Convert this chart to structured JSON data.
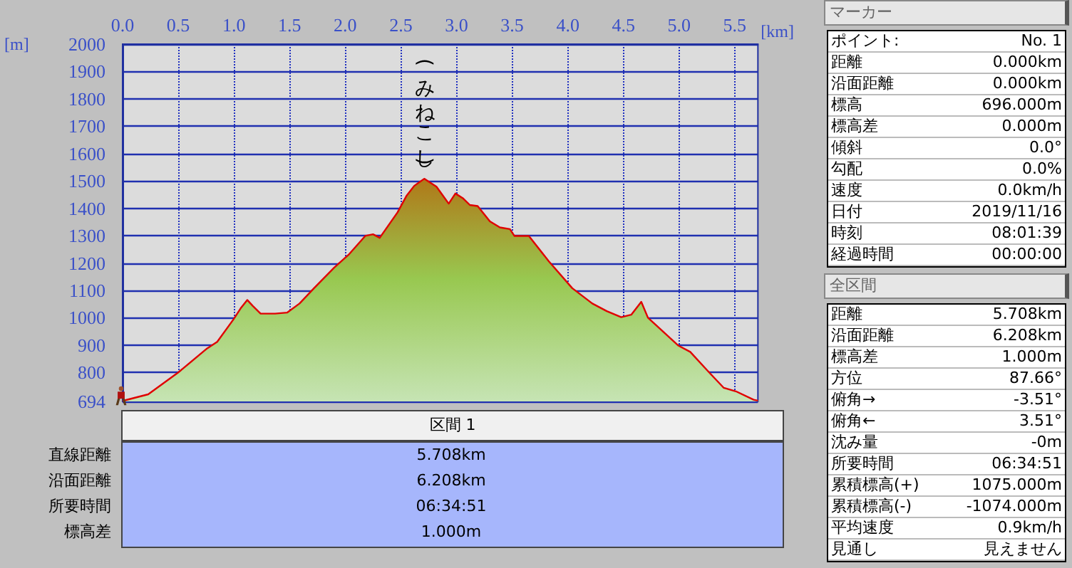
{
  "chart_data": [
    {
      "type": "area",
      "xlabel": "[km]",
      "ylabel": "[m]",
      "grid": true,
      "xlim": [
        0,
        5.708
      ],
      "ylim": [
        694,
        2000
      ],
      "xticks": [
        {
          "value": 0,
          "label": "0.0"
        },
        {
          "value": 0.5,
          "label": "0.5"
        },
        {
          "value": 1,
          "label": "1.0"
        },
        {
          "value": 1.5,
          "label": "1.5"
        },
        {
          "value": 2,
          "label": "2.0"
        },
        {
          "value": 2.5,
          "label": "2.5"
        },
        {
          "value": 3,
          "label": "3.0"
        },
        {
          "value": 3.5,
          "label": "3.5"
        },
        {
          "value": 4,
          "label": "4.0"
        },
        {
          "value": 4.5,
          "label": "4.5"
        },
        {
          "value": 5,
          "label": "5.0"
        },
        {
          "value": 5.5,
          "label": "5.5"
        }
      ],
      "yticks": [
        694,
        800,
        900,
        1000,
        1100,
        1200,
        1300,
        1400,
        1500,
        1600,
        1700,
        1800,
        1900,
        2000
      ],
      "x": [
        0,
        0.23,
        0.5,
        0.76,
        0.85,
        1.0,
        1.06,
        1.12,
        1.17,
        1.24,
        1.37,
        1.48,
        1.59,
        1.72,
        1.9,
        2.03,
        2.18,
        2.25,
        2.31,
        2.47,
        2.55,
        2.62,
        2.71,
        2.82,
        2.93,
        2.99,
        3.06,
        3.12,
        3.19,
        3.3,
        3.39,
        3.48,
        3.52,
        3.65,
        3.83,
        4.04,
        4.22,
        4.35,
        4.48,
        4.57,
        4.66,
        4.72,
        4.83,
        4.99,
        5.1,
        5.27,
        5.4,
        5.51,
        5.67,
        5.708
      ],
      "series": [
        {
          "color": "#e00000",
          "values": [
            696,
            720,
            800,
            888,
            912,
            996,
            1034,
            1065,
            1043,
            1015,
            1015,
            1019,
            1052,
            1108,
            1183,
            1230,
            1299,
            1305,
            1292,
            1385,
            1445,
            1482,
            1508,
            1479,
            1417,
            1454,
            1436,
            1412,
            1408,
            1352,
            1330,
            1324,
            1299,
            1299,
            1206,
            1108,
            1052,
            1024,
            1002,
            1011,
            1058,
            1000,
            959,
            899,
            875,
            800,
            744,
            731,
            700,
            697
          ]
        }
      ],
      "annotations": [
        {
          "text": "(みねこし)",
          "x": 2.71,
          "y": 1508
        }
      ]
    },
    {
      "type": "other",
      "title": "マーカー",
      "annotations": [
        "ポイント:",
        "No. 1",
        "距離",
        "0.000km",
        "沿面距離",
        "0.000km",
        "標高",
        "696.000m",
        "標高差",
        "0.000m",
        "傾斜",
        "0.0°",
        "勾配",
        "0.0%",
        "速度",
        "0.0km/h",
        "日付",
        "2019/11/16",
        "時刻",
        "08:01:39",
        "経過時間",
        "00:00:00"
      ]
    },
    {
      "type": "other",
      "title": "全区間",
      "annotations": [
        "距離",
        "5.708km",
        "沿面距離",
        "6.208km",
        "標高差",
        "1.000m",
        "方位",
        "87.66°",
        "俯角→",
        "-3.51°",
        "俯角←",
        "3.51°",
        "沈み量",
        "-0m",
        "所要時間",
        "06:34:51",
        "累積標高(+)",
        "1075.000m",
        "累積標高(-)",
        "-1074.000m",
        "平均速度",
        "0.9km/h",
        "見通し",
        "見えません"
      ]
    },
    {
      "type": "other",
      "title": "区間 1",
      "annotations": [
        "直線距離",
        "5.708km",
        "沿面距離",
        "6.208km",
        "所要時間",
        "06:34:51",
        "標高差",
        "1.000m"
      ]
    }
  ]
}
